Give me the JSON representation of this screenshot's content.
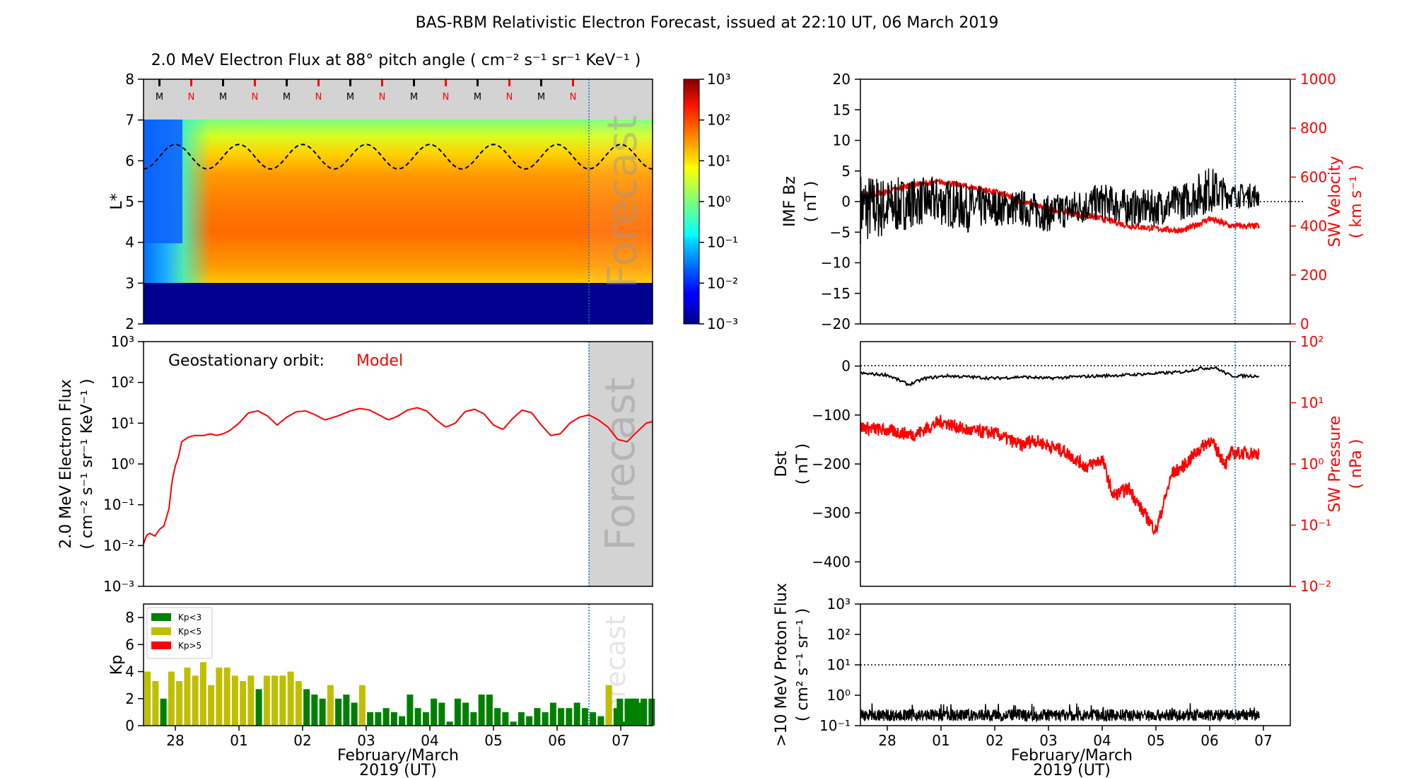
{
  "figure": {
    "title": "BAS-RBM Relativistic Electron Forecast, issued at 22:10 UT, 06 March 2019"
  },
  "colors": {
    "model_red": "#ff0000",
    "kp_green": "#008000",
    "kp_yellow": "#bfbf00",
    "kp_red": "#ff0000",
    "forecast_gray": "#d3d3d3",
    "forecast_line": "#1f77b4"
  },
  "time_axis": {
    "start": "2019-02-27T12:00Z",
    "end": "2019-03-07T12:00Z",
    "forecast_start": "2019-03-06T22:10Z",
    "tick_labels": [
      "28",
      "01",
      "02",
      "03",
      "04",
      "05",
      "06",
      "07"
    ],
    "xlabel_line1": "February/March",
    "xlabel_line2": "2019 (UT)"
  },
  "chart_data": [
    {
      "id": "lstar_flux",
      "type": "heatmap",
      "title": "2.0 MeV Electron Flux at 88° pitch angle ( cm⁻² s⁻¹ sr⁻¹ KeV⁻¹ )",
      "ylabel": "L*",
      "ylim": [
        2,
        8
      ],
      "yticks": [
        "2",
        "3",
        "4",
        "5",
        "6",
        "7",
        "8"
      ],
      "watermark": "Forecast",
      "colorbar": {
        "scale": "log",
        "range": [
          0.001,
          1000.0
        ],
        "tick_exponents": [
          "10³",
          "10²",
          "10¹",
          "10⁰",
          "10⁻¹",
          "10⁻²",
          "10⁻³"
        ]
      },
      "mn_markers": [
        "M",
        "N",
        "M",
        "N",
        "M",
        "N",
        "M",
        "N",
        "M",
        "N",
        "M",
        "N",
        "M",
        "N"
      ],
      "geo_orbit_lstar": {
        "min": 5.8,
        "max": 6.4,
        "style": "dashed"
      }
    },
    {
      "id": "geo_flux",
      "type": "line",
      "ylabel_line1": "2.0 MeV Electron Flux",
      "ylabel_line2": "( cm⁻² s⁻¹ sr⁻¹ KeV⁻¹ )",
      "yscale": "log",
      "ylim": [
        0.001,
        1000.0
      ],
      "ytick_labels": [
        "10⁻³",
        "10⁻²",
        "10⁻¹",
        "10⁰",
        "10¹",
        "10²",
        "10³"
      ],
      "annotation_label": "Geostationary orbit:",
      "annotation_value": "Model",
      "watermark": "Forecast",
      "series": [
        {
          "name": "Model",
          "x_days": [
            0,
            0.05,
            0.1,
            0.18,
            0.25,
            0.32,
            0.4,
            0.45,
            0.5,
            0.55,
            0.6,
            0.7,
            0.8,
            0.95,
            1.05,
            1.15,
            1.25,
            1.35,
            1.5,
            1.65,
            1.8,
            1.95,
            2.1,
            2.25,
            2.4,
            2.55,
            2.7,
            2.85,
            3.05,
            3.25,
            3.4,
            3.55,
            3.7,
            3.85,
            4.0,
            4.15,
            4.3,
            4.45,
            4.6,
            4.75,
            4.9,
            5.05,
            5.2,
            5.35,
            5.5,
            5.65,
            5.8,
            5.95,
            6.1,
            6.25,
            6.4,
            6.55,
            6.7,
            6.85,
            7.0,
            7.15,
            7.3,
            7.45,
            7.6,
            7.75,
            7.9,
            8.0
          ],
          "values": [
            0.011,
            0.018,
            0.02,
            0.017,
            0.025,
            0.03,
            0.08,
            0.4,
            0.9,
            1.5,
            3.5,
            4.5,
            5.0,
            5.0,
            5.5,
            5.0,
            5.5,
            6.5,
            10,
            18,
            20,
            15,
            9,
            14,
            19,
            20,
            16,
            12,
            15,
            20,
            23,
            21,
            16,
            12,
            15,
            21,
            24,
            20,
            12,
            8,
            10,
            19,
            22,
            17,
            9,
            7,
            13,
            21,
            18,
            9,
            5,
            5.5,
            10,
            14,
            16,
            12,
            8,
            4,
            3.5,
            6,
            10,
            11
          ]
        }
      ]
    },
    {
      "id": "kp",
      "type": "bar",
      "ylabel": "Kp",
      "ylim": [
        0,
        9
      ],
      "ytick_labels": [
        "0",
        "2",
        "4",
        "6",
        "8"
      ],
      "watermark": "Forecast",
      "legend": [
        {
          "label": "Kp<3",
          "color": "#008000"
        },
        {
          "label": "Kp<5",
          "color": "#bfbf00"
        },
        {
          "label": "Kp>5",
          "color": "#ff0000"
        }
      ],
      "bar_width_days": 0.1,
      "x_start_days": 0.0625,
      "x_step_days": 0.125,
      "values": [
        4.0,
        3.3,
        2.0,
        4.0,
        3.3,
        4.3,
        3.7,
        4.7,
        3.0,
        4.3,
        4.3,
        3.7,
        3.3,
        3.7,
        2.7,
        3.7,
        3.7,
        3.7,
        4.0,
        3.3,
        2.7,
        2.3,
        2.0,
        3.0,
        2.0,
        2.3,
        1.7,
        3.0,
        1.0,
        1.0,
        1.3,
        1.0,
        0.7,
        2.3,
        1.3,
        1.0,
        2.0,
        1.7,
        0.3,
        2.0,
        1.7,
        1.0,
        2.3,
        2.3,
        1.3,
        1.0,
        0.3,
        1.0,
        0.7,
        1.3,
        1.0,
        1.7,
        1.3,
        1.3,
        1.7,
        1.3,
        1.0,
        0.7,
        3.0,
        1.3,
        0.3,
        2.0,
        1.7
      ]
    },
    {
      "id": "imf_sw",
      "type": "line",
      "ylabel_left_line1": "IMF Bz",
      "ylabel_left_line2": "( nT )",
      "ylim_left": [
        -20,
        20
      ],
      "yticks_left": [
        "-20",
        "-15",
        "-10",
        "-5",
        "0",
        "5",
        "10",
        "15",
        "20"
      ],
      "ylabel_right_line1": "SW Velocity",
      "ylabel_right_line2": "( km s⁻¹ )",
      "ylim_right": [
        0,
        1000
      ],
      "yticks_right": [
        "0",
        "200",
        "400",
        "600",
        "800",
        "1000"
      ],
      "series": [
        {
          "name": "IMF Bz",
          "x_days": [
            0,
            0.5,
            1,
            1.5,
            2,
            2.5,
            3,
            3.5,
            4,
            4.5,
            5,
            5.5,
            6,
            6.5,
            6.9
          ],
          "mean": [
            -1,
            -1,
            0,
            0,
            -1,
            -1,
            -1,
            -2,
            -1,
            0,
            -1,
            -1,
            0,
            2,
            1
          ],
          "spread": [
            6,
            5,
            4,
            4,
            4,
            3,
            3,
            3,
            3,
            3,
            3,
            3,
            3,
            4,
            2
          ]
        },
        {
          "name": "SW Velocity",
          "x_days": [
            0,
            0.5,
            1,
            1.5,
            2,
            2.5,
            3,
            3.5,
            4,
            4.5,
            5,
            5.5,
            6,
            6.5,
            6.9
          ],
          "values": [
            520,
            540,
            570,
            580,
            560,
            540,
            500,
            470,
            450,
            430,
            400,
            390,
            380,
            430,
            400
          ]
        }
      ]
    },
    {
      "id": "dst_pressure",
      "type": "line",
      "ylabel_left_line1": "Dst",
      "ylabel_left_line2": "( nT )",
      "ylim_left": [
        -450,
        50
      ],
      "yticks_left": [
        "-400",
        "-300",
        "-200",
        "-100",
        "0"
      ],
      "ylabel_right_line1": "SW Pressure",
      "ylabel_right_line2": "( nPa )",
      "ylim_right": [
        0.01,
        100
      ],
      "yticks_right": [
        "10⁻²",
        "10⁻¹",
        "10⁰",
        "10¹",
        "10²"
      ],
      "series": [
        {
          "name": "Dst",
          "x_days": [
            0,
            0.5,
            0.9,
            1.2,
            1.6,
            2,
            2.5,
            3,
            3.5,
            4,
            4.5,
            5,
            5.5,
            6,
            6.3,
            6.6,
            6.9
          ],
          "values": [
            -15,
            -18,
            -38,
            -25,
            -20,
            -22,
            -25,
            -22,
            -25,
            -22,
            -20,
            -18,
            -15,
            -12,
            -5,
            -3,
            -20
          ]
        },
        {
          "name": "SW Pressure",
          "x_days": [
            0,
            0.5,
            1,
            1.5,
            2,
            2.5,
            3,
            3.2,
            3.5,
            3.8,
            4.2,
            4.5,
            4.7,
            5.0,
            5.2,
            5.5,
            5.8,
            6.0,
            6.2,
            6.5,
            6.8,
            6.9
          ],
          "values": [
            4,
            3.5,
            3,
            5,
            3.5,
            3.2,
            2,
            2.5,
            2,
            1.6,
            0.9,
            1.2,
            0.3,
            0.4,
            0.2,
            0.08,
            0.7,
            0.9,
            1.4,
            2.5,
            1.0,
            1.5
          ]
        }
      ]
    },
    {
      "id": "proton_flux",
      "type": "line",
      "ylabel_line1": ">10 MeV Proton Flux",
      "ylabel_line2": "( cm² s⁻¹ sr⁻¹ )",
      "yscale": "log",
      "ylim": [
        0.1,
        1000
      ],
      "ytick_labels": [
        "10⁻¹",
        "10⁰",
        "10¹",
        "10²",
        "10³"
      ],
      "threshold": 10,
      "series": [
        {
          "name": ">10 MeV Proton Flux",
          "typical": 0.22,
          "max_spike": 0.6
        }
      ]
    }
  ]
}
